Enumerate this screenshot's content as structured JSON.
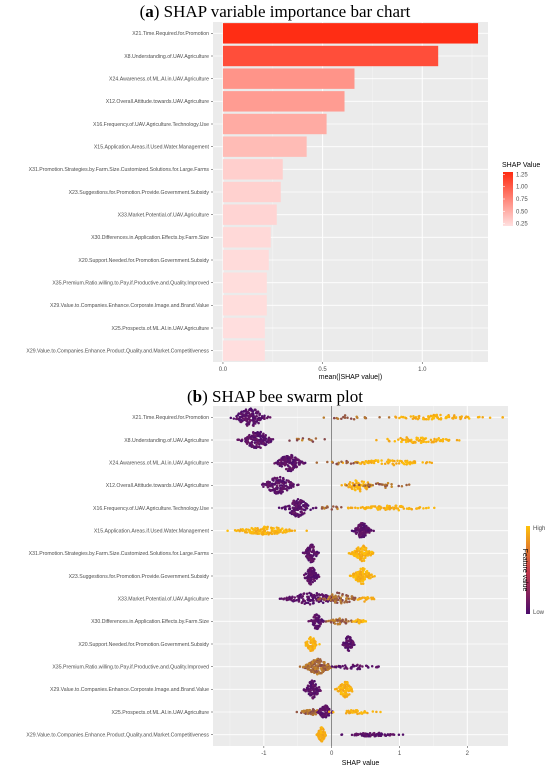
{
  "chart_data": [
    {
      "type": "bar",
      "title_letter": "a",
      "title_text": " SHAP variable importance bar chart",
      "categories": [
        "X21.Time.Required.for.Promotion",
        "X8.Understanding.of.UAV.Agriculture",
        "X24.Awareness.of.ML.AI.in.UAV.Agriculture",
        "X12.Overall.Attitude.towards.UAV.Agriculture",
        "X16.Frequency.of.UAV.Agriculture.Technology.Use",
        "X15.Application.Areas.if.Used.Water.Management",
        "X31.Promotion.Strategies.by.Farm.Size.Customized.Solutions.for.Large.Farms",
        "X23.Suggestions.for.Promotion.Provide.Government.Subsidy",
        "X33.Market.Potential.of.UAV.Agriculture",
        "X30.Differences.in.Application.Effects.by.Farm.Size",
        "X20.Support.Needed.for.Promotion.Government.Subsidy",
        "X35.Premium.Ratio.willing.to.Pay.if.Productive.and.Quality.Improved",
        "X29.Value.to.Companies.Enhance.Corporate.Image.and.Brand.Value",
        "X25.Prospects.of.ML.AI.in.UAV.Agriculture",
        "X29.Value.to.Companies.Enhance.Product.Quality.and.Market.Competitiveness"
      ],
      "values": [
        1.28,
        1.08,
        0.66,
        0.61,
        0.52,
        0.42,
        0.3,
        0.29,
        0.27,
        0.24,
        0.23,
        0.22,
        0.22,
        0.21,
        0.21
      ],
      "xlabel": "mean(|SHAP value|)",
      "xticks": [
        0.0,
        0.5,
        1.0
      ],
      "xtick_labels": [
        "0.0",
        "0.5",
        "1.0"
      ],
      "xlim": [
        -0.05,
        1.33
      ],
      "legend": {
        "title": "SHAP Value",
        "ticks": [
          "1.25",
          "1.00",
          "0.75",
          "0.50",
          "0.25"
        ],
        "tick_values": [
          1.25,
          1.0,
          0.75,
          0.5,
          0.25
        ],
        "range": [
          0.2,
          1.3
        ],
        "low_color": "#ffe0e0",
        "high_color": "#ff2a10"
      },
      "grid": true,
      "background": "#ebebeb"
    },
    {
      "type": "scatter",
      "title_letter": "b",
      "title_text": " SHAP bee swarm plot",
      "xlabel": "SHAP value",
      "xticks": [
        -1,
        0,
        1,
        2
      ],
      "xtick_labels": [
        "-1",
        "0",
        "1",
        "2"
      ],
      "xlim": [
        -1.75,
        2.6
      ],
      "legend": {
        "title": "Feature value",
        "high_label": "High",
        "low_label": "Low",
        "low_color": "#4a0c6b",
        "mid_color": "#c73b4b",
        "high_color": "#ffc20a"
      },
      "grid": true,
      "background": "#ebebeb",
      "features": [
        {
          "name": "X21.Time.Required.for.Promotion",
          "clusters": [
            {
              "center": -1.2,
              "spread": 0.25,
              "height": 9,
              "color": "low",
              "count": 150
            },
            {
              "center": 1.6,
              "spread": 0.75,
              "height": 2.5,
              "color": "high",
              "count": 75
            },
            {
              "center": 0.25,
              "spread": 0.45,
              "height": 2,
              "color": "mid",
              "count": 18
            }
          ]
        },
        {
          "name": "X8.Understanding.of.UAV.Agriculture",
          "clusters": [
            {
              "center": -1.1,
              "spread": 0.22,
              "height": 9,
              "color": "low",
              "count": 150
            },
            {
              "center": 1.25,
              "spread": 0.6,
              "height": 3,
              "color": "high",
              "count": 75
            },
            {
              "center": -0.35,
              "spread": 0.35,
              "height": 2,
              "color": "mid",
              "count": 12
            }
          ]
        },
        {
          "name": "X24.Awareness.of.ML.AI.in.UAV.Agriculture",
          "clusters": [
            {
              "center": -0.62,
              "spread": 0.2,
              "height": 8.5,
              "color": "low",
              "count": 130
            },
            {
              "center": 0.85,
              "spread": 0.55,
              "height": 3,
              "color": "high",
              "count": 75
            },
            {
              "center": 0.15,
              "spread": 0.3,
              "height": 2,
              "color": "mid",
              "count": 18
            }
          ]
        },
        {
          "name": "X12.Overall.Attitude.towards.UAV.Agriculture",
          "clusters": [
            {
              "center": -0.78,
              "spread": 0.24,
              "height": 9,
              "color": "low",
              "count": 140
            },
            {
              "center": 0.4,
              "spread": 0.2,
              "height": 7,
              "color": "high",
              "count": 55
            },
            {
              "center": 0.8,
              "spread": 0.45,
              "height": 2.5,
              "color": "mid",
              "count": 30
            }
          ]
        },
        {
          "name": "X16.Frequency.of.UAV.Agriculture.Technology.Use",
          "clusters": [
            {
              "center": -0.5,
              "spread": 0.2,
              "height": 9,
              "color": "low",
              "count": 130
            },
            {
              "center": 0.85,
              "spread": 0.55,
              "height": 2.5,
              "color": "high",
              "count": 75
            },
            {
              "center": 0.0,
              "spread": 0.2,
              "height": 2,
              "color": "mid",
              "count": 14
            }
          ]
        },
        {
          "name": "X15.Application.Areas.if.Used.Water.Management",
          "clusters": [
            {
              "center": -0.98,
              "spread": 0.45,
              "height": 4,
              "color": "high",
              "count": 120
            },
            {
              "center": 0.45,
              "spread": 0.12,
              "height": 8,
              "color": "low",
              "count": 105
            }
          ]
        },
        {
          "name": "X31.Promotion.Strategies.by.Farm.Size.Customized.Solutions.for.Large.Farms",
          "clusters": [
            {
              "center": -0.3,
              "spread": 0.1,
              "height": 9,
              "color": "low",
              "count": 95
            },
            {
              "center": 0.45,
              "spread": 0.15,
              "height": 8,
              "color": "high",
              "count": 105
            }
          ]
        },
        {
          "name": "X23.Suggestions.for.Promotion.Provide.Government.Subsidy",
          "clusters": [
            {
              "center": -0.3,
              "spread": 0.1,
              "height": 9,
              "color": "low",
              "count": 95
            },
            {
              "center": 0.45,
              "spread": 0.15,
              "height": 8,
              "color": "high",
              "count": 105
            }
          ]
        },
        {
          "name": "X33.Market.Potential.of.UAV.Agriculture",
          "clusters": [
            {
              "center": -0.3,
              "spread": 0.4,
              "height": 6,
              "color": "low",
              "count": 130
            },
            {
              "center": 0.1,
              "spread": 0.28,
              "height": 6,
              "color": "mid",
              "count": 70
            },
            {
              "center": 0.5,
              "spread": 0.15,
              "height": 3,
              "color": "high",
              "count": 20
            }
          ]
        },
        {
          "name": "X30.Differences.in.Application.Effects.by.Farm.Size",
          "clusters": [
            {
              "center": -0.22,
              "spread": 0.08,
              "height": 8,
              "color": "low",
              "count": 70
            },
            {
              "center": 0.12,
              "spread": 0.2,
              "height": 3,
              "color": "mid",
              "count": 45
            },
            {
              "center": 0.4,
              "spread": 0.12,
              "height": 2,
              "color": "high",
              "count": 22
            }
          ]
        },
        {
          "name": "X20.Support.Needed.for.Promotion.Government.Subsidy",
          "clusters": [
            {
              "center": -0.3,
              "spread": 0.09,
              "height": 7,
              "color": "high",
              "count": 75
            },
            {
              "center": 0.25,
              "spread": 0.08,
              "height": 8,
              "color": "low",
              "count": 80
            }
          ]
        },
        {
          "name": "X35.Premium.Ratio.willing.to.Pay.if.Productive.and.Quality.Improved",
          "clusters": [
            {
              "center": -0.2,
              "spread": 0.2,
              "height": 8,
              "color": "mid",
              "count": 150
            },
            {
              "center": 0.35,
              "spread": 0.35,
              "height": 3,
              "color": "low",
              "count": 40
            }
          ]
        },
        {
          "name": "X29.Value.to.Companies.Enhance.Corporate.Image.and.Brand.Value",
          "clusters": [
            {
              "center": -0.28,
              "spread": 0.12,
              "height": 9,
              "color": "low",
              "count": 100
            },
            {
              "center": 0.2,
              "spread": 0.12,
              "height": 8,
              "color": "high",
              "count": 90
            }
          ]
        },
        {
          "name": "X25.Prospects.of.ML.AI.in.UAV.Agriculture",
          "clusters": [
            {
              "center": -0.3,
              "spread": 0.18,
              "height": 3,
              "color": "mid",
              "count": 45
            },
            {
              "center": -0.1,
              "spread": 0.1,
              "height": 7,
              "color": "low",
              "count": 75
            },
            {
              "center": 0.35,
              "spread": 0.35,
              "height": 2,
              "color": "high",
              "count": 35
            }
          ]
        },
        {
          "name": "X29.Value.to.Companies.Enhance.Product.Quality.and.Market.Competitiveness",
          "clusters": [
            {
              "center": -0.15,
              "spread": 0.06,
              "height": 8,
              "color": "high",
              "count": 70
            },
            {
              "center": 0.6,
              "spread": 0.38,
              "height": 2,
              "color": "low",
              "count": 90
            }
          ]
        }
      ]
    }
  ]
}
